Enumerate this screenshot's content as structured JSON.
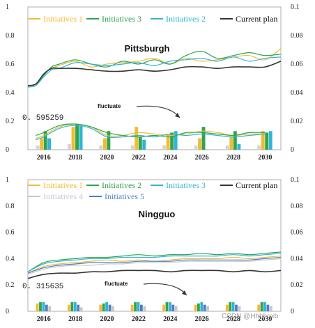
{
  "colors": {
    "initiative_1": "#f2bb32",
    "initiative_2": "#31b4d6",
    "initiative_3": "#2ea44f",
    "initiative_4": "#c4c8d6",
    "initiative_5": "#4f7fc2",
    "current_plan": "#333333",
    "baseline_bar": "#d4d4d4"
  },
  "watermark": "CSDN @Hhhhgxb",
  "chart_data": [
    {
      "type": "line",
      "title": "Pittsburgh",
      "legend": [
        "Initiatives 1",
        "Initiatives 3",
        "Initiatives 2",
        "Current plan"
      ],
      "annotation_value": "0. 595259",
      "annotation_arrow": "fluctuate",
      "x": [
        2016,
        2018,
        2020,
        2022,
        2024,
        2026,
        2028,
        2030
      ],
      "x_ticks": [
        "2016",
        "2018",
        "2020",
        "2022",
        "2024",
        "2026",
        "2028",
        "2030"
      ],
      "xlim": [
        2015,
        2031
      ],
      "y_left_ticks": [
        "0",
        "0.2",
        "0.4",
        "0.6",
        "0.8",
        "1"
      ],
      "y_left_range": [
        0,
        1
      ],
      "y_right_ticks": [
        "0",
        "0.02",
        "0.04",
        "0.06",
        "0.08",
        "0.1"
      ],
      "y_right_range": [
        0,
        0.1
      ],
      "series": [
        {
          "name": "Initiatives 1",
          "color_key": "initiative_1",
          "axis": "left",
          "x": [
            2015,
            2015.5,
            2016,
            2016.5,
            2017,
            2018,
            2019,
            2020,
            2021,
            2022,
            2023,
            2024,
            2025,
            2026,
            2027,
            2028,
            2029,
            2030,
            2031
          ],
          "y": [
            0.45,
            0.46,
            0.53,
            0.57,
            0.59,
            0.62,
            0.58,
            0.6,
            0.61,
            0.62,
            0.64,
            0.6,
            0.64,
            0.62,
            0.63,
            0.65,
            0.66,
            0.63,
            0.71
          ]
        },
        {
          "name": "Initiatives 3",
          "color_key": "initiative_3",
          "axis": "left",
          "x": [
            2015,
            2015.5,
            2016,
            2016.5,
            2017,
            2018,
            2019,
            2020,
            2021,
            2022,
            2023,
            2024,
            2025,
            2026,
            2027,
            2028,
            2029,
            2030,
            2031
          ],
          "y": [
            0.44,
            0.45,
            0.52,
            0.58,
            0.6,
            0.63,
            0.6,
            0.58,
            0.62,
            0.6,
            0.63,
            0.6,
            0.66,
            0.69,
            0.64,
            0.66,
            0.68,
            0.66,
            0.67
          ]
        },
        {
          "name": "Initiatives 2",
          "color_key": "initiative_2",
          "axis": "left",
          "x": [
            2015,
            2015.5,
            2016,
            2016.5,
            2017,
            2018,
            2019,
            2020,
            2021,
            2022,
            2023,
            2024,
            2025,
            2026,
            2027,
            2028,
            2029,
            2030,
            2031
          ],
          "y": [
            0.44,
            0.45,
            0.51,
            0.56,
            0.57,
            0.61,
            0.6,
            0.59,
            0.6,
            0.61,
            0.59,
            0.62,
            0.63,
            0.64,
            0.62,
            0.65,
            0.62,
            0.64,
            0.65
          ]
        },
        {
          "name": "Current plan",
          "color_key": "current_plan",
          "axis": "left",
          "x": [
            2015,
            2015.5,
            2016,
            2016.5,
            2017,
            2018,
            2019,
            2020,
            2021,
            2022,
            2023,
            2024,
            2025,
            2026,
            2027,
            2028,
            2029,
            2030,
            2031
          ],
          "y": [
            0.45,
            0.46,
            0.53,
            0.57,
            0.57,
            0.57,
            0.56,
            0.55,
            0.55,
            0.56,
            0.55,
            0.56,
            0.58,
            0.58,
            0.57,
            0.58,
            0.58,
            0.58,
            0.62
          ]
        },
        {
          "name": "Initiatives 1",
          "color_key": "initiative_1",
          "axis": "right",
          "x": [
            2015.5,
            2016,
            2017,
            2018,
            2019,
            2020,
            2021,
            2022,
            2023,
            2024,
            2025,
            2026,
            2027,
            2028,
            2029,
            2030
          ],
          "y": [
            0.008,
            0.01,
            0.016,
            0.018,
            0.016,
            0.01,
            0.01,
            0.012,
            0.011,
            0.01,
            0.011,
            0.013,
            0.012,
            0.01,
            0.011,
            0.011
          ]
        },
        {
          "name": "Initiatives 3",
          "color_key": "initiative_3",
          "axis": "right",
          "x": [
            2015.5,
            2016,
            2017,
            2018,
            2019,
            2020,
            2021,
            2022,
            2023,
            2024,
            2025,
            2026,
            2027,
            2028,
            2029,
            2030
          ],
          "y": [
            0.01,
            0.012,
            0.017,
            0.018,
            0.016,
            0.012,
            0.01,
            0.009,
            0.01,
            0.009,
            0.012,
            0.012,
            0.011,
            0.01,
            0.012,
            0.012
          ]
        },
        {
          "name": "Initiatives 2",
          "color_key": "initiative_2",
          "axis": "right",
          "x": [
            2015.5,
            2016,
            2017,
            2018,
            2019,
            2020,
            2021,
            2022,
            2023,
            2024,
            2025,
            2026,
            2027,
            2028,
            2029,
            2030
          ],
          "y": [
            0.007,
            0.009,
            0.015,
            0.017,
            0.015,
            0.009,
            0.009,
            0.01,
            0.009,
            0.011,
            0.01,
            0.011,
            0.01,
            0.009,
            0.01,
            0.011
          ]
        }
      ],
      "bars_axis": "right",
      "bars": [
        {
          "color_key": "baseline_bar",
          "values": [
            0.003,
            0.004,
            0.003,
            0.003,
            0.003,
            0.003,
            0.003,
            0.003
          ]
        },
        {
          "color_key": "initiative_1",
          "values": [
            0.008,
            0.016,
            0.008,
            0.016,
            0.011,
            0.008,
            0.009,
            0.013
          ]
        },
        {
          "color_key": "initiative_3",
          "values": [
            0.013,
            0.018,
            0.013,
            0.009,
            0.012,
            0.016,
            0.013,
            0.012
          ]
        },
        {
          "color_key": "initiative_2",
          "values": [
            0.008,
            0.017,
            0.0,
            0.007,
            0.013,
            0.0,
            0.004,
            0.013
          ]
        }
      ]
    },
    {
      "type": "line",
      "title": "Ningguo",
      "legend": [
        "Initiatives 1",
        "Initiatives 2",
        "Initiatives 3",
        "Current plan",
        "Initiatives 4",
        "Initiatives 5"
      ],
      "annotation_value": "0. 315635",
      "annotation_arrow": "fluctuate",
      "x": [
        2016,
        2018,
        2020,
        2022,
        2024,
        2026,
        2028,
        2030
      ],
      "x_ticks": [
        "2016",
        "2018",
        "2020",
        "2022",
        "2024",
        "2026",
        "2028",
        "2030"
      ],
      "xlim": [
        2015,
        2031
      ],
      "y_left_ticks": [
        "0",
        "0.2",
        "0.4",
        "0.6",
        "0.8",
        "1"
      ],
      "y_left_range": [
        0,
        1
      ],
      "y_right_ticks": [
        "0",
        "0.02",
        "0.04",
        "0.06",
        "0.08",
        "0.1"
      ],
      "y_right_range": [
        0,
        0.1
      ],
      "series": [
        {
          "name": "Initiatives 1",
          "color_key": "initiative_1",
          "axis": "left",
          "x": [
            2015,
            2016,
            2017,
            2018,
            2019,
            2020,
            2021,
            2022,
            2023,
            2024,
            2025,
            2026,
            2027,
            2028,
            2029,
            2030,
            2031
          ],
          "y": [
            0.29,
            0.34,
            0.36,
            0.37,
            0.38,
            0.39,
            0.38,
            0.39,
            0.38,
            0.39,
            0.4,
            0.4,
            0.4,
            0.41,
            0.4,
            0.41,
            0.42
          ]
        },
        {
          "name": "Initiatives 2",
          "color_key": "initiative_3",
          "axis": "left",
          "x": [
            2015,
            2016,
            2017,
            2018,
            2019,
            2020,
            2021,
            2022,
            2023,
            2024,
            2025,
            2026,
            2027,
            2028,
            2029,
            2030,
            2031
          ],
          "y": [
            0.3,
            0.37,
            0.39,
            0.4,
            0.41,
            0.41,
            0.42,
            0.43,
            0.42,
            0.43,
            0.43,
            0.44,
            0.43,
            0.44,
            0.43,
            0.44,
            0.45
          ]
        },
        {
          "name": "Initiatives 3",
          "color_key": "initiative_2",
          "axis": "left",
          "x": [
            2015,
            2016,
            2017,
            2018,
            2019,
            2020,
            2021,
            2022,
            2023,
            2024,
            2025,
            2026,
            2027,
            2028,
            2029,
            2030,
            2031
          ],
          "y": [
            0.3,
            0.36,
            0.38,
            0.39,
            0.4,
            0.4,
            0.41,
            0.41,
            0.41,
            0.42,
            0.42,
            0.42,
            0.42,
            0.43,
            0.42,
            0.43,
            0.44
          ]
        },
        {
          "name": "Current plan",
          "color_key": "current_plan",
          "axis": "left",
          "x": [
            2015,
            2016,
            2017,
            2018,
            2019,
            2020,
            2021,
            2022,
            2023,
            2024,
            2025,
            2026,
            2027,
            2028,
            2029,
            2030,
            2031
          ],
          "y": [
            0.25,
            0.28,
            0.29,
            0.29,
            0.3,
            0.3,
            0.31,
            0.31,
            0.31,
            0.3,
            0.31,
            0.31,
            0.31,
            0.3,
            0.31,
            0.3,
            0.31
          ]
        },
        {
          "name": "Initiatives 4",
          "color_key": "initiative_4",
          "axis": "left",
          "x": [
            2015,
            2016,
            2017,
            2018,
            2019,
            2020,
            2021,
            2022,
            2023,
            2024,
            2025,
            2026,
            2027,
            2028,
            2029,
            2030,
            2031
          ],
          "y": [
            0.28,
            0.32,
            0.34,
            0.35,
            0.35,
            0.36,
            0.36,
            0.37,
            0.37,
            0.37,
            0.38,
            0.38,
            0.38,
            0.38,
            0.38,
            0.39,
            0.4
          ]
        },
        {
          "name": "Initiatives 5",
          "color_key": "initiative_5",
          "axis": "left",
          "x": [
            2015,
            2016,
            2017,
            2018,
            2019,
            2020,
            2021,
            2022,
            2023,
            2024,
            2025,
            2026,
            2027,
            2028,
            2029,
            2030,
            2031
          ],
          "y": [
            0.29,
            0.33,
            0.35,
            0.36,
            0.37,
            0.37,
            0.37,
            0.38,
            0.38,
            0.38,
            0.39,
            0.39,
            0.39,
            0.39,
            0.39,
            0.4,
            0.41
          ]
        }
      ],
      "bars_axis": "right",
      "bars": [
        {
          "color_key": "initiative_1",
          "values": [
            0.006,
            0.005,
            0.005,
            0.005,
            0.005,
            0.005,
            0.005,
            0.005
          ]
        },
        {
          "color_key": "initiative_3",
          "values": [
            0.007,
            0.007,
            0.006,
            0.007,
            0.007,
            0.006,
            0.007,
            0.007
          ]
        },
        {
          "color_key": "initiative_2",
          "values": [
            0.007,
            0.007,
            0.007,
            0.007,
            0.007,
            0.007,
            0.007,
            0.007
          ]
        },
        {
          "color_key": "initiative_5",
          "values": [
            0.005,
            0.005,
            0.005,
            0.005,
            0.005,
            0.005,
            0.005,
            0.005
          ]
        },
        {
          "color_key": "initiative_4",
          "values": [
            0.004,
            0.003,
            0.004,
            0.004,
            0.004,
            0.004,
            0.004,
            0.004
          ]
        }
      ]
    }
  ]
}
